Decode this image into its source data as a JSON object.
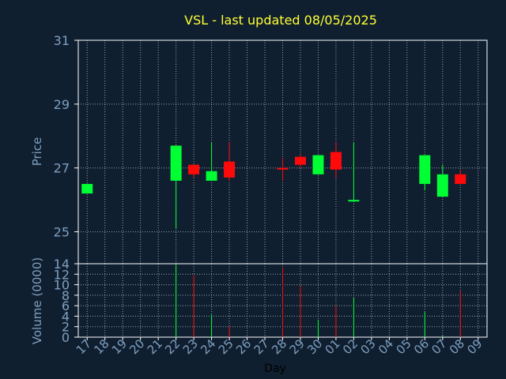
{
  "chart_data": {
    "type": "candlestick",
    "title": "VSL - last updated 08/05/2025",
    "ylabel": "Price",
    "volume_ylabel": "Volume (0000)",
    "xlabel": "Day",
    "ylim": [
      24,
      31
    ],
    "volume_ylim": [
      0,
      14
    ],
    "y_ticks": [
      25,
      27,
      29,
      31
    ],
    "volume_ticks": [
      0,
      2,
      4,
      6,
      8,
      10,
      12,
      14
    ],
    "grid": true,
    "x_ticks": [
      "17",
      "18",
      "19",
      "20",
      "21",
      "22",
      "23",
      "24",
      "25",
      "26",
      "27",
      "28",
      "29",
      "30",
      "01",
      "02",
      "03",
      "04",
      "05",
      "06",
      "07",
      "08",
      "09"
    ],
    "candles": [
      {
        "x": "17",
        "open": 26.2,
        "close": 26.5,
        "high": 26.5,
        "low": 26.2,
        "volume": 0
      },
      {
        "x": "22",
        "open": 26.6,
        "close": 27.7,
        "high": 27.7,
        "low": 25.1,
        "volume": 13.8
      },
      {
        "x": "23",
        "open": 27.1,
        "close": 26.8,
        "high": 27.1,
        "low": 26.7,
        "volume": 11.8
      },
      {
        "x": "24",
        "open": 26.6,
        "close": 26.9,
        "high": 27.8,
        "low": 26.6,
        "volume": 4.3
      },
      {
        "x": "25",
        "open": 27.2,
        "close": 26.7,
        "high": 27.8,
        "low": 26.6,
        "volume": 2.0
      },
      {
        "x": "28",
        "open": 27.0,
        "close": 26.95,
        "high": 27.3,
        "low": 26.6,
        "volume": 13.2
      },
      {
        "x": "29",
        "open": 27.35,
        "close": 27.1,
        "high": 27.4,
        "low": 27.0,
        "volume": 9.8
      },
      {
        "x": "30",
        "open": 26.8,
        "close": 27.4,
        "high": 27.4,
        "low": 26.8,
        "volume": 3.3
      },
      {
        "x": "01",
        "open": 27.5,
        "close": 26.95,
        "high": 27.8,
        "low": 26.7,
        "volume": 6.0
      },
      {
        "x": "02",
        "open": 26.0,
        "close": 26.0,
        "high": 27.8,
        "low": 26.0,
        "volume": 7.5
      },
      {
        "x": "06",
        "open": 26.5,
        "close": 27.4,
        "high": 27.4,
        "low": 26.3,
        "volume": 4.8
      },
      {
        "x": "07",
        "open": 26.1,
        "close": 26.8,
        "high": 27.1,
        "low": 26.1,
        "volume": 0.3
      },
      {
        "x": "08",
        "open": 26.8,
        "close": 26.5,
        "high": 26.95,
        "low": 26.5,
        "volume": 8.8
      }
    ],
    "colors": {
      "background": "#0f1f30",
      "up": "#00ff33",
      "down": "#ff0a0a",
      "axis": "#ffffff",
      "grid": "#cccccc",
      "tick_text": "#7f9fbf",
      "title": "#ffff33",
      "xlabel": "#000000"
    }
  }
}
